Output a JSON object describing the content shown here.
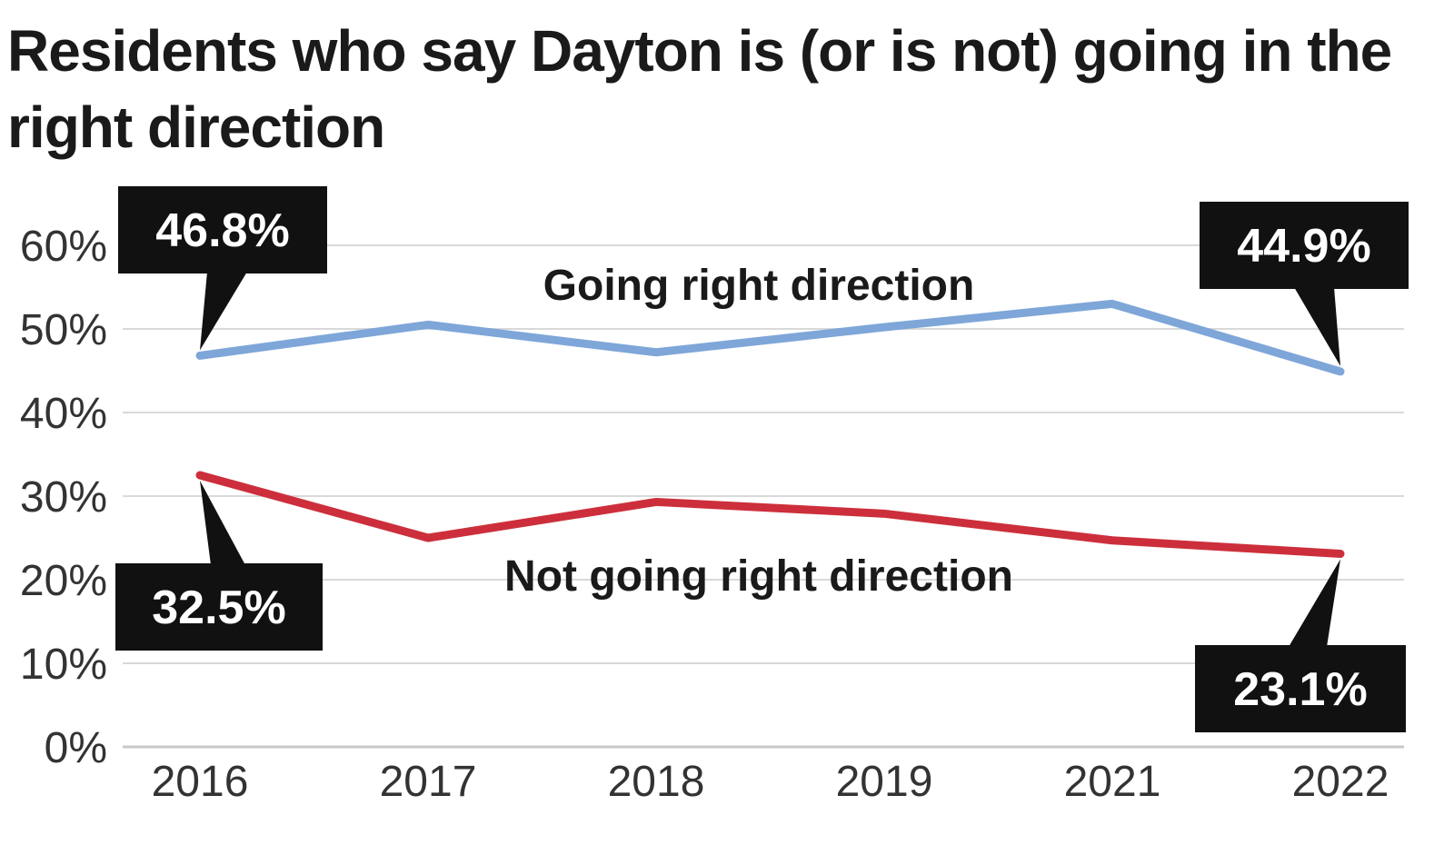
{
  "chart_data": {
    "type": "line",
    "title": "Residents who say Dayton is (or is not) going in the right direction",
    "categories": [
      "2016",
      "2017",
      "2018",
      "2019",
      "2021",
      "2022"
    ],
    "ylim": [
      0,
      60
    ],
    "yticks": [
      0,
      10,
      20,
      30,
      40,
      50,
      60
    ],
    "ytick_labels": [
      "0%",
      "10%",
      "20%",
      "30%",
      "40%",
      "50%",
      "60%"
    ],
    "grid": true,
    "series": [
      {
        "name": "Going right direction",
        "color": "#7ea6d8",
        "values": [
          46.8,
          50.5,
          47.2,
          50.2,
          53.0,
          44.9
        ]
      },
      {
        "name": "Not going right direction",
        "color": "#cc2f3b",
        "values": [
          32.5,
          25.0,
          29.3,
          27.9,
          24.7,
          23.1
        ]
      }
    ],
    "annotations": [
      {
        "text": "46.8%",
        "series": 0,
        "category": "2016"
      },
      {
        "text": "44.9%",
        "series": 0,
        "category": "2022"
      },
      {
        "text": "32.5%",
        "series": 1,
        "category": "2016"
      },
      {
        "text": "23.1%",
        "series": 1,
        "category": "2022"
      }
    ]
  }
}
